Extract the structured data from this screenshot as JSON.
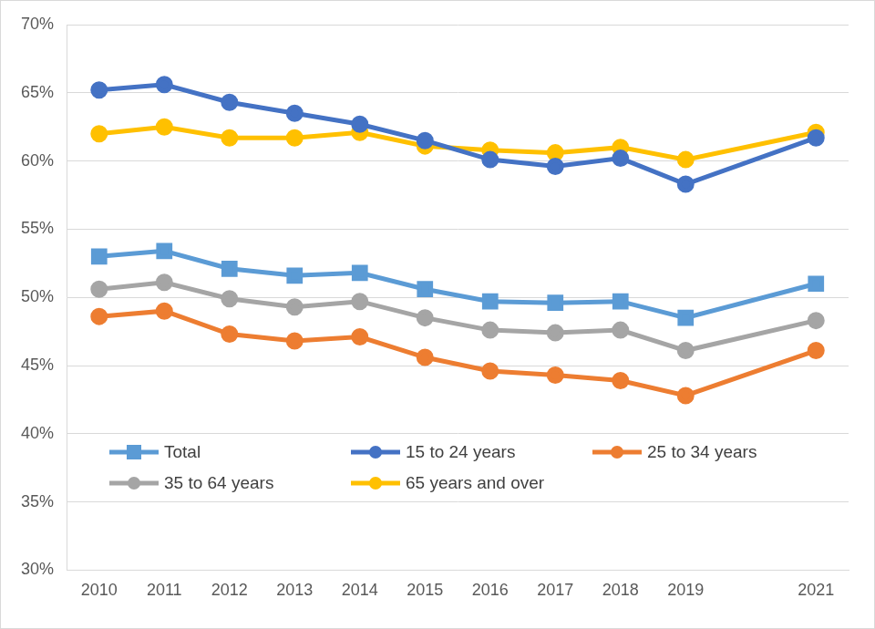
{
  "chart_data": {
    "type": "line",
    "categories": [
      "2010",
      "2011",
      "2012",
      "2013",
      "2014",
      "2015",
      "2016",
      "2017",
      "2018",
      "2019",
      null,
      "2021"
    ],
    "series": [
      {
        "name": "Total",
        "color": "#5b9bd5",
        "marker": "square",
        "values": [
          53.0,
          53.4,
          52.1,
          51.6,
          51.8,
          50.6,
          49.7,
          49.6,
          49.7,
          48.5,
          null,
          51.0
        ]
      },
      {
        "name": "15 to 24 years",
        "color": "#4472c4",
        "marker": "circle",
        "values": [
          65.2,
          65.6,
          64.3,
          63.5,
          62.7,
          61.5,
          60.1,
          59.6,
          60.2,
          58.3,
          null,
          61.7
        ]
      },
      {
        "name": "25 to 34 years",
        "color": "#ed7d31",
        "marker": "circle",
        "values": [
          48.6,
          49.0,
          47.3,
          46.8,
          47.1,
          45.6,
          44.6,
          44.3,
          43.9,
          42.8,
          null,
          46.1
        ]
      },
      {
        "name": "35 to 64 years",
        "color": "#a5a5a5",
        "marker": "circle",
        "values": [
          50.6,
          51.1,
          49.9,
          49.3,
          49.7,
          48.5,
          47.6,
          47.4,
          47.6,
          46.1,
          null,
          48.3
        ]
      },
      {
        "name": "65 years and over",
        "color": "#ffc000",
        "marker": "circle",
        "values": [
          62.0,
          62.5,
          61.7,
          61.7,
          62.1,
          61.1,
          60.8,
          60.6,
          61.0,
          60.1,
          null,
          62.1
        ]
      }
    ],
    "ylim": [
      30,
      70
    ],
    "yticks": [
      {
        "value": 30,
        "label": "30%"
      },
      {
        "value": 35,
        "label": "35%"
      },
      {
        "value": 40,
        "label": "40%"
      },
      {
        "value": 45,
        "label": "45%"
      },
      {
        "value": 50,
        "label": "50%"
      },
      {
        "value": 55,
        "label": "55%"
      },
      {
        "value": 60,
        "label": "60%"
      },
      {
        "value": 65,
        "label": "65%"
      },
      {
        "value": 70,
        "label": "70%"
      }
    ],
    "grid": true,
    "legend": "lower left"
  }
}
